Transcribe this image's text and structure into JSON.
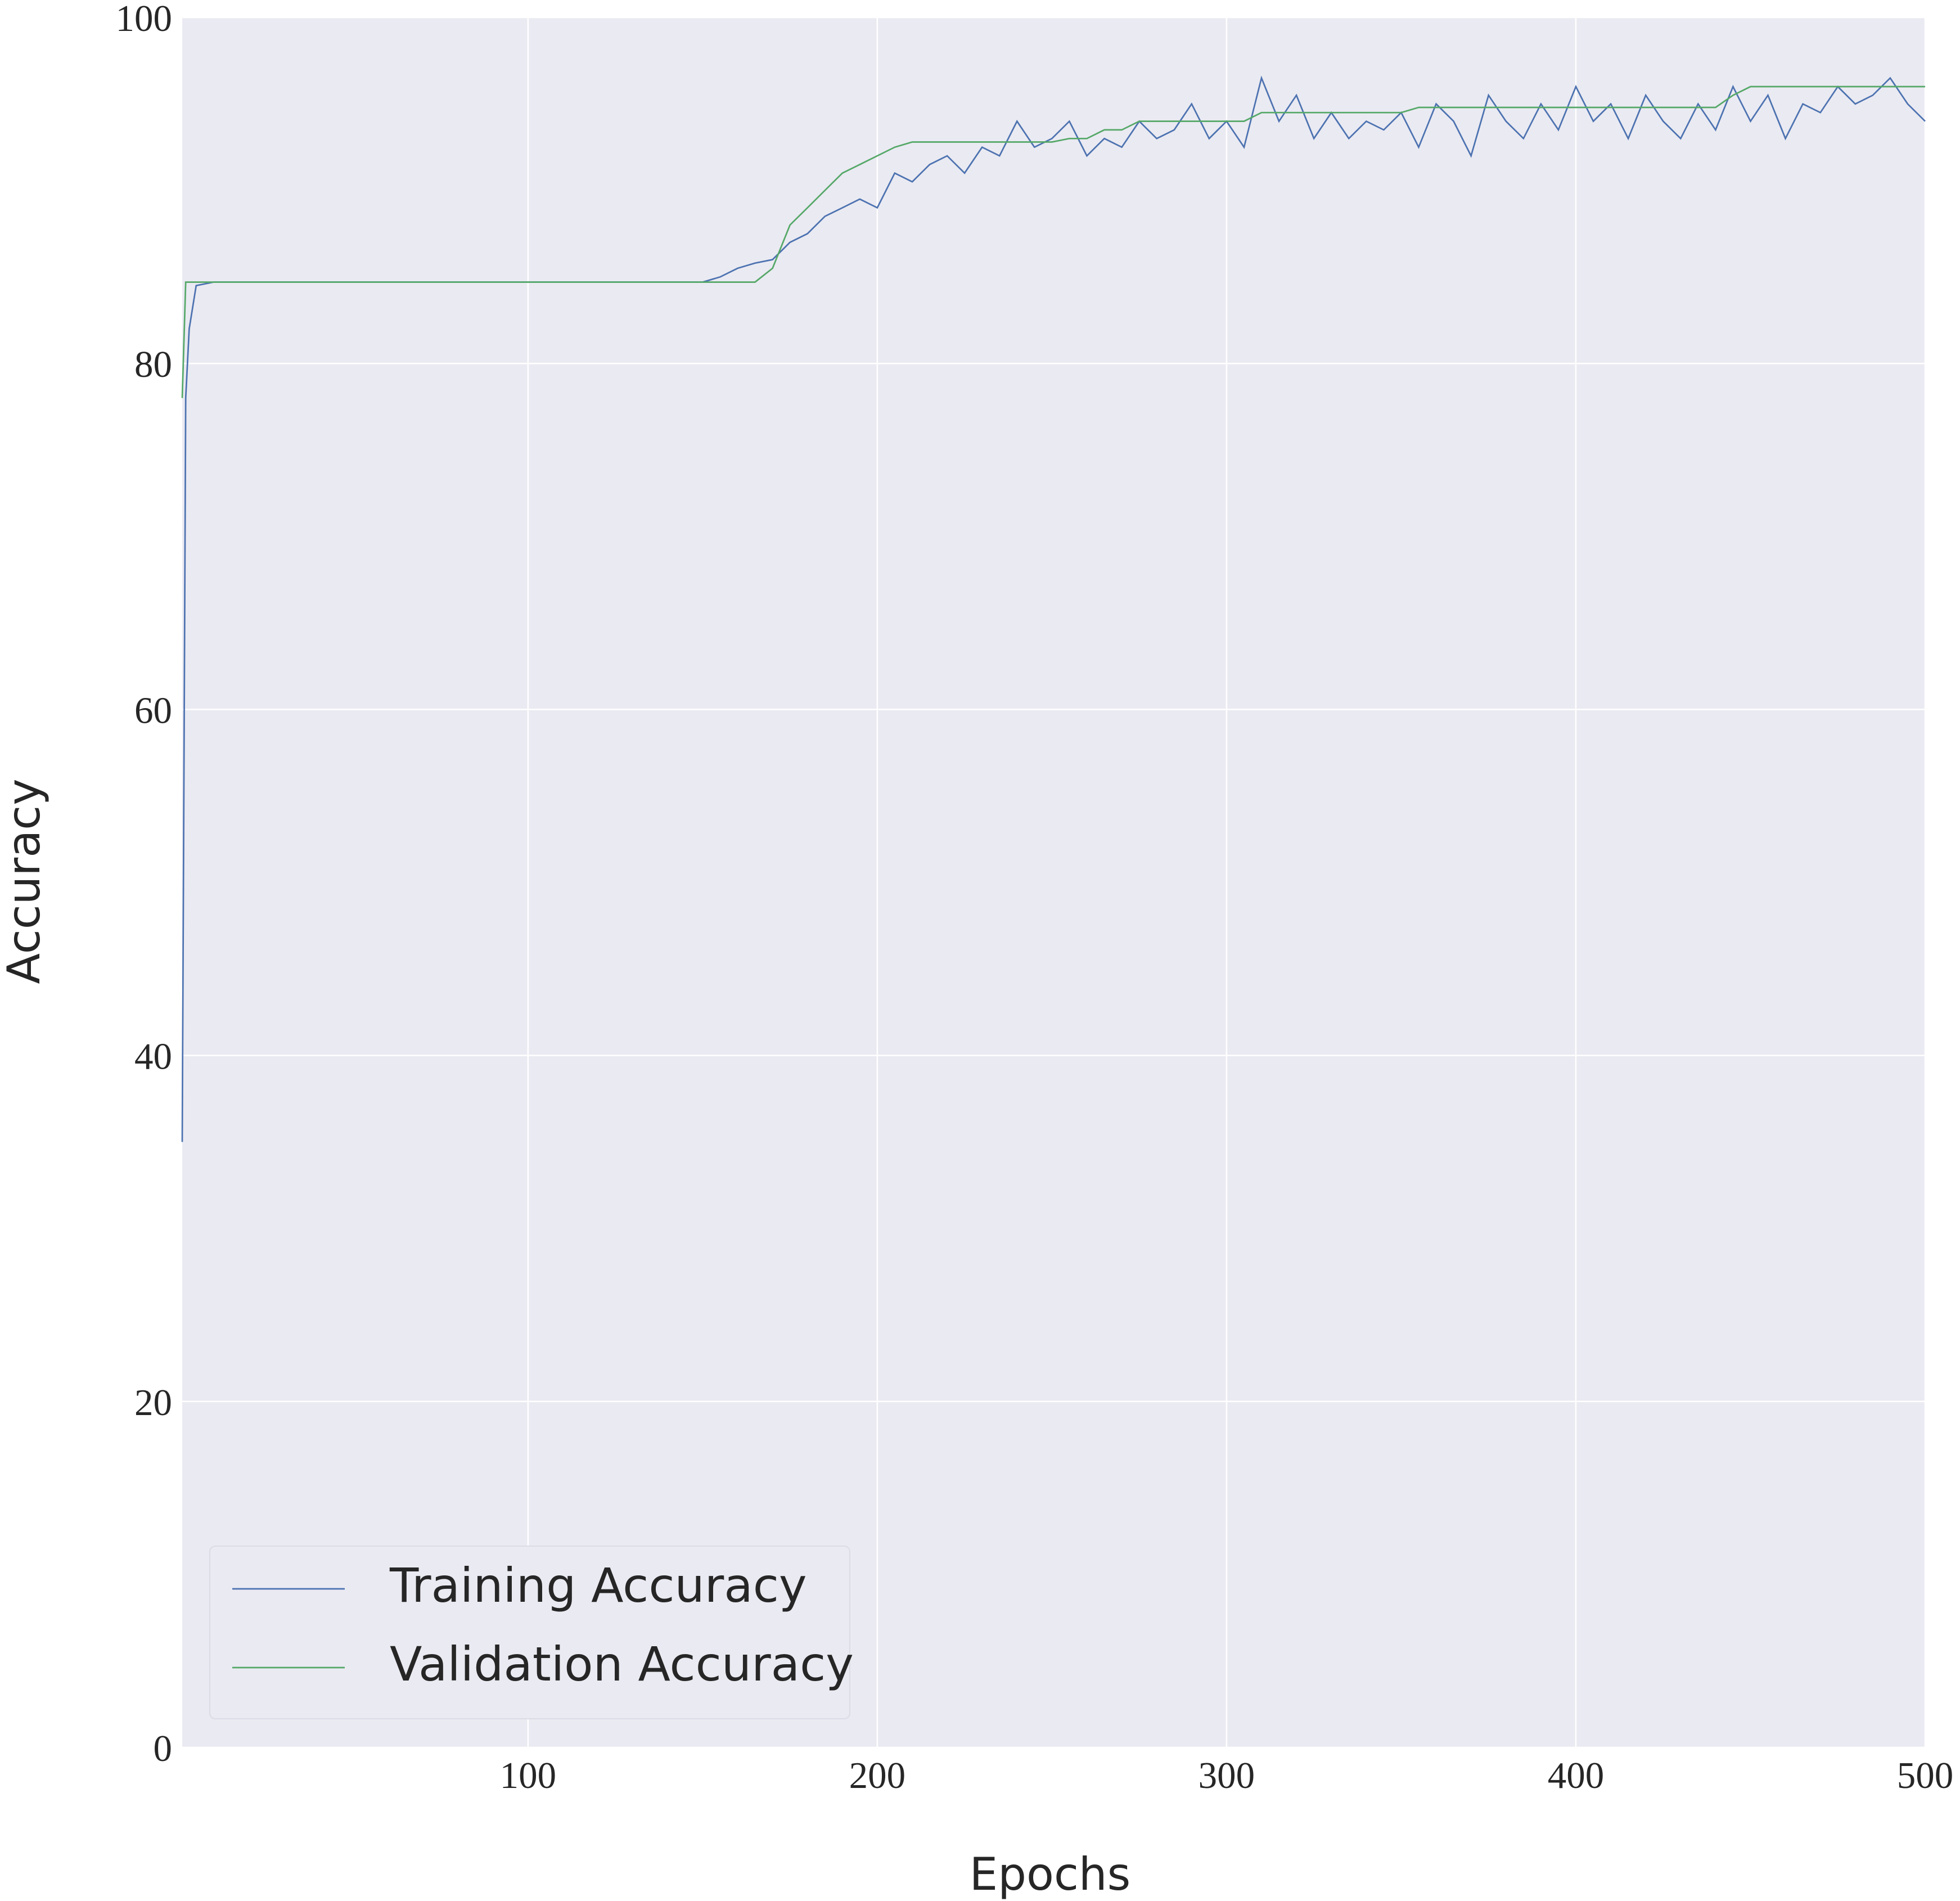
{
  "chart_data": {
    "type": "line",
    "xlabel": "Epochs",
    "ylabel": "Accuracy",
    "x": [
      1,
      2,
      3,
      5,
      10,
      20,
      30,
      40,
      50,
      60,
      70,
      80,
      90,
      100,
      110,
      120,
      130,
      140,
      150,
      155,
      160,
      165,
      170,
      175,
      180,
      185,
      190,
      195,
      200,
      205,
      210,
      215,
      220,
      225,
      230,
      235,
      240,
      245,
      250,
      255,
      260,
      265,
      270,
      275,
      280,
      285,
      290,
      295,
      300,
      305,
      310,
      315,
      320,
      325,
      330,
      335,
      340,
      345,
      350,
      355,
      360,
      365,
      370,
      375,
      380,
      385,
      390,
      395,
      400,
      405,
      410,
      415,
      420,
      425,
      430,
      435,
      440,
      445,
      450,
      455,
      460,
      465,
      470,
      475,
      480,
      485,
      490,
      495,
      500
    ],
    "series": [
      {
        "name": "Training Accuracy",
        "color": "#4c72b0",
        "values": [
          35,
          78,
          82,
          84.5,
          84.7,
          84.7,
          84.7,
          84.7,
          84.7,
          84.7,
          84.7,
          84.7,
          84.7,
          84.7,
          84.7,
          84.7,
          84.7,
          84.7,
          84.7,
          85,
          85.5,
          85.8,
          86,
          87,
          87.5,
          88.5,
          89,
          89.5,
          89,
          91,
          90.5,
          91.5,
          92,
          91,
          92.5,
          92,
          94,
          92.5,
          93,
          94,
          92,
          93,
          92.5,
          94,
          93,
          93.5,
          95,
          93,
          94,
          92.5,
          96.5,
          94,
          95.5,
          93,
          94.5,
          93,
          94,
          93.5,
          94.5,
          92.5,
          95,
          94,
          92,
          95.5,
          94,
          93,
          95,
          93.5,
          96,
          94,
          95,
          93,
          95.5,
          94,
          93,
          95,
          93.5,
          96,
          94,
          95.5,
          93,
          95,
          94.5,
          96,
          95,
          95.5,
          96.5,
          95,
          94
        ]
      },
      {
        "name": "Validation Accuracy",
        "color": "#55a868",
        "values": [
          78,
          84.7,
          84.7,
          84.7,
          84.7,
          84.7,
          84.7,
          84.7,
          84.7,
          84.7,
          84.7,
          84.7,
          84.7,
          84.7,
          84.7,
          84.7,
          84.7,
          84.7,
          84.7,
          84.7,
          84.7,
          84.7,
          85.5,
          88,
          89,
          90,
          91,
          91.5,
          92,
          92.5,
          92.8,
          92.8,
          92.8,
          92.8,
          92.8,
          92.8,
          92.8,
          92.8,
          92.8,
          93,
          93,
          93.5,
          93.5,
          94,
          94,
          94,
          94,
          94,
          94,
          94,
          94.5,
          94.5,
          94.5,
          94.5,
          94.5,
          94.5,
          94.5,
          94.5,
          94.5,
          94.8,
          94.8,
          94.8,
          94.8,
          94.8,
          94.8,
          94.8,
          94.8,
          94.8,
          94.8,
          94.8,
          94.8,
          94.8,
          94.8,
          94.8,
          94.8,
          94.8,
          94.8,
          95.5,
          96,
          96,
          96,
          96,
          96,
          96,
          96,
          96,
          96,
          96,
          96
        ]
      }
    ],
    "xlim": [
      1,
      500
    ],
    "xticks": [
      100,
      200,
      300,
      400,
      500
    ],
    "ylim": [
      0,
      100
    ],
    "yticks": [
      0,
      20,
      40,
      60,
      80,
      100
    ],
    "grid": true,
    "legend": "lower left"
  }
}
